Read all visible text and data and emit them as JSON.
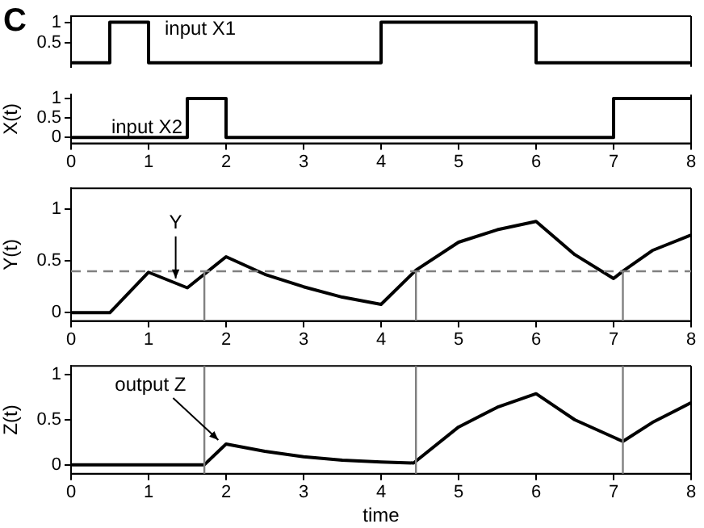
{
  "chart_data": [
    {
      "type": "step",
      "annotations": [
        "C"
      ],
      "xlim": [
        0,
        8
      ],
      "ylim": [
        -0.1,
        1.15
      ],
      "yticks": [
        0.5,
        1
      ],
      "tick_labels": "y",
      "series": [
        {
          "name": "input X1",
          "color": "#000000",
          "x": [
            0,
            0.5,
            1,
            4,
            6,
            8
          ],
          "values": [
            0,
            1,
            0,
            1,
            0,
            0
          ]
        }
      ],
      "legend": false
    },
    {
      "type": "step",
      "ylabel": "X(t)",
      "xlim": [
        0,
        8
      ],
      "xticks": [
        0,
        1,
        2,
        3,
        4,
        5,
        6,
        7,
        8
      ],
      "ylim": [
        -0.15,
        1.1
      ],
      "yticks": [
        0,
        0.5,
        1
      ],
      "series": [
        {
          "name": "input X2",
          "color": "#000000",
          "x": [
            0,
            1.5,
            2,
            7,
            8
          ],
          "values": [
            0,
            1,
            0,
            1,
            1
          ]
        }
      ],
      "legend": false
    },
    {
      "type": "line",
      "ylabel": "Y(t)",
      "annotations": [
        {
          "text": "Y",
          "x": 1.35,
          "y": 0.3
        }
      ],
      "xlim": [
        0,
        8
      ],
      "xticks": [
        0,
        1,
        2,
        3,
        4,
        5,
        6,
        7,
        8
      ],
      "ylim": [
        -0.08,
        1.2
      ],
      "yticks": [
        0,
        0.5,
        1
      ],
      "series": [
        {
          "color": "#000000",
          "x": [
            0,
            0.5,
            1,
            1.5,
            2,
            2.5,
            3,
            3.5,
            4,
            4.45,
            5,
            5.5,
            6,
            6.5,
            7,
            7.12,
            7.5,
            8
          ],
          "values": [
            0,
            0,
            0.39,
            0.24,
            0.54,
            0.37,
            0.25,
            0.15,
            0.08,
            0.41,
            0.68,
            0.8,
            0.88,
            0.56,
            0.33,
            0.4,
            0.6,
            0.75
          ]
        }
      ],
      "ref_lines": [
        {
          "axis": "y",
          "value": 0.4,
          "color": "#808080",
          "line_style": "dashed"
        },
        {
          "axis": "x",
          "value": 1.72,
          "color": "#808080"
        },
        {
          "axis": "x",
          "value": 4.45,
          "color": "#808080"
        },
        {
          "axis": "x",
          "value": 7.12,
          "color": "#808080"
        }
      ],
      "legend": false
    },
    {
      "type": "line",
      "ylabel": "Z(t)",
      "xlabel": "time",
      "annotations": [
        {
          "text": "output Z",
          "x": 1.9,
          "y": 0.24
        }
      ],
      "xlim": [
        0,
        8
      ],
      "xticks": [
        0,
        1,
        2,
        3,
        4,
        5,
        6,
        7,
        8
      ],
      "ylim": [
        -0.1,
        1.1
      ],
      "yticks": [
        0,
        0.5,
        1
      ],
      "series": [
        {
          "color": "#000000",
          "x": [
            0,
            1.72,
            2,
            2.5,
            3,
            3.5,
            4,
            4.42,
            5,
            5.5,
            6,
            6.5,
            7.12,
            7.5,
            8
          ],
          "values": [
            0,
            0,
            0.23,
            0.15,
            0.09,
            0.05,
            0.03,
            0.02,
            0.42,
            0.64,
            0.79,
            0.5,
            0.26,
            0.47,
            0.69
          ]
        }
      ],
      "ref_lines": [
        {
          "axis": "x",
          "value": 1.72,
          "color": "#808080"
        },
        {
          "axis": "x",
          "value": 4.45,
          "color": "#808080"
        },
        {
          "axis": "x",
          "value": 7.12,
          "color": "#808080"
        }
      ],
      "legend": false
    }
  ]
}
